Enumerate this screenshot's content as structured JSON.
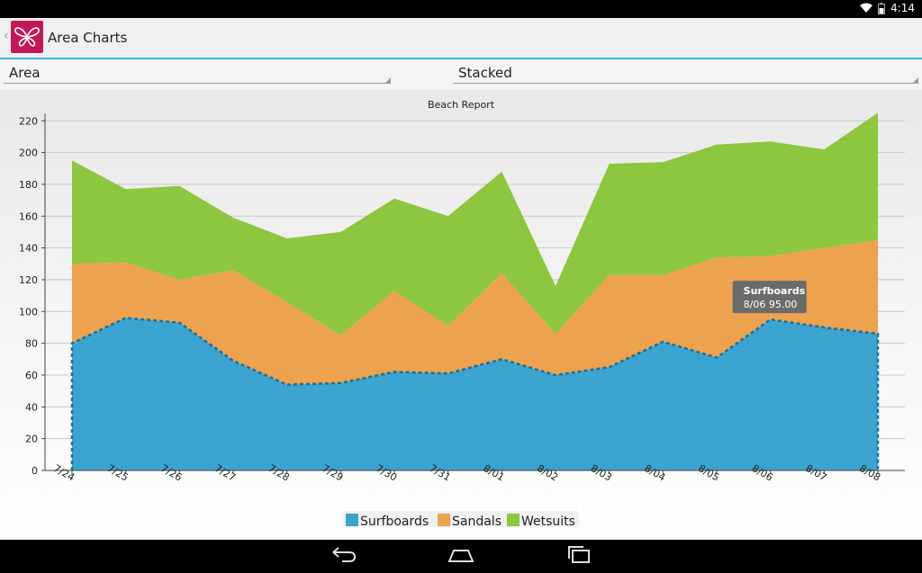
{
  "status_bar": {
    "time": "4:14"
  },
  "action_bar": {
    "title": "Area Charts"
  },
  "spinners": {
    "chart_type": "Area",
    "mode": "Stacked"
  },
  "tooltip": {
    "title": "Surfboards",
    "text": "8/06 95.00"
  },
  "colors": {
    "surfboards": "#3ba3cf",
    "sandals": "#eca24f",
    "wetsuits": "#8dc63f",
    "accent": "#33b5e5",
    "app_icon": "#c2185b"
  },
  "icons": {
    "back": "back-arrow-icon",
    "home": "home-icon",
    "recents": "recents-icon",
    "wifi": "wifi-icon",
    "battery": "battery-icon",
    "app": "butterfly-icon"
  },
  "chart_data": {
    "type": "area",
    "title": "Beach Report",
    "stacked": true,
    "categories": [
      "7/24",
      "7/25",
      "7/26",
      "7/27",
      "7/28",
      "7/29",
      "7/30",
      "7/31",
      "8/01",
      "8/02",
      "8/03",
      "8/04",
      "8/05",
      "8/06",
      "8/07",
      "8/08"
    ],
    "series": [
      {
        "name": "Surfboards",
        "values": [
          80,
          96,
          93,
          69,
          54,
          55,
          62,
          61,
          70,
          60,
          65,
          81,
          71,
          95,
          90,
          86
        ]
      },
      {
        "name": "Sandals",
        "values": [
          50,
          35,
          27,
          57,
          52,
          30,
          51,
          30,
          54,
          26,
          58,
          42,
          63,
          40,
          50,
          59
        ]
      },
      {
        "name": "Wetsuits",
        "values": [
          65,
          46,
          59,
          33,
          40,
          65,
          58,
          69,
          64,
          30,
          70,
          71,
          71,
          72,
          62,
          80
        ]
      }
    ],
    "ylim": [
      0,
      220
    ],
    "yticks": [
      0,
      20,
      40,
      60,
      80,
      100,
      120,
      140,
      160,
      180,
      200,
      220
    ],
    "grid": true,
    "legend_position": "bottom"
  }
}
